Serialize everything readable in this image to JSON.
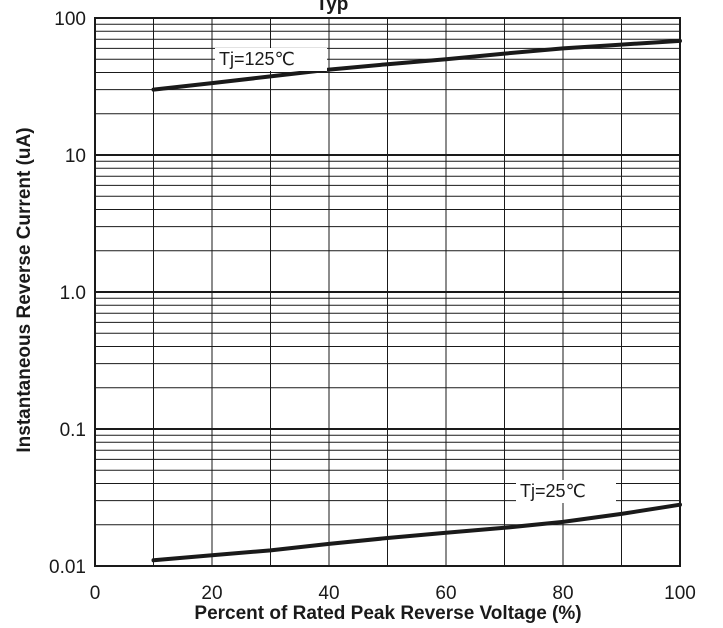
{
  "chart_data": {
    "type": "line",
    "title_fragment": "Typ",
    "xlabel": "Percent of Rated Peak Reverse Voltage  (%)",
    "ylabel": "Instantaneous Reverse Current (uA)",
    "xlim": [
      0,
      100
    ],
    "ylim": [
      0.01,
      100
    ],
    "yscale": "log",
    "grid": true,
    "x_ticks": [
      0,
      20,
      40,
      60,
      80,
      100
    ],
    "x_tick_labels": [
      "0",
      "20",
      "40",
      "60",
      "80",
      "100"
    ],
    "y_ticks": [
      0.01,
      0.1,
      1,
      10,
      100
    ],
    "y_tick_labels": [
      "0.01",
      "0.1",
      "1.0",
      "10",
      "100"
    ],
    "series": [
      {
        "name": "Tj=125℃",
        "x": [
          10,
          20,
          30,
          40,
          50,
          60,
          70,
          80,
          90,
          100
        ],
        "y": [
          30,
          33.5,
          37.5,
          42,
          46,
          50,
          55,
          60,
          64,
          68
        ],
        "color": "#1a1a1a"
      },
      {
        "name": "Tj=25℃",
        "x": [
          10,
          20,
          30,
          40,
          50,
          60,
          70,
          80,
          90,
          100
        ],
        "y": [
          0.011,
          0.012,
          0.013,
          0.0145,
          0.016,
          0.0175,
          0.019,
          0.021,
          0.024,
          0.028
        ],
        "color": "#1a1a1a"
      }
    ]
  }
}
